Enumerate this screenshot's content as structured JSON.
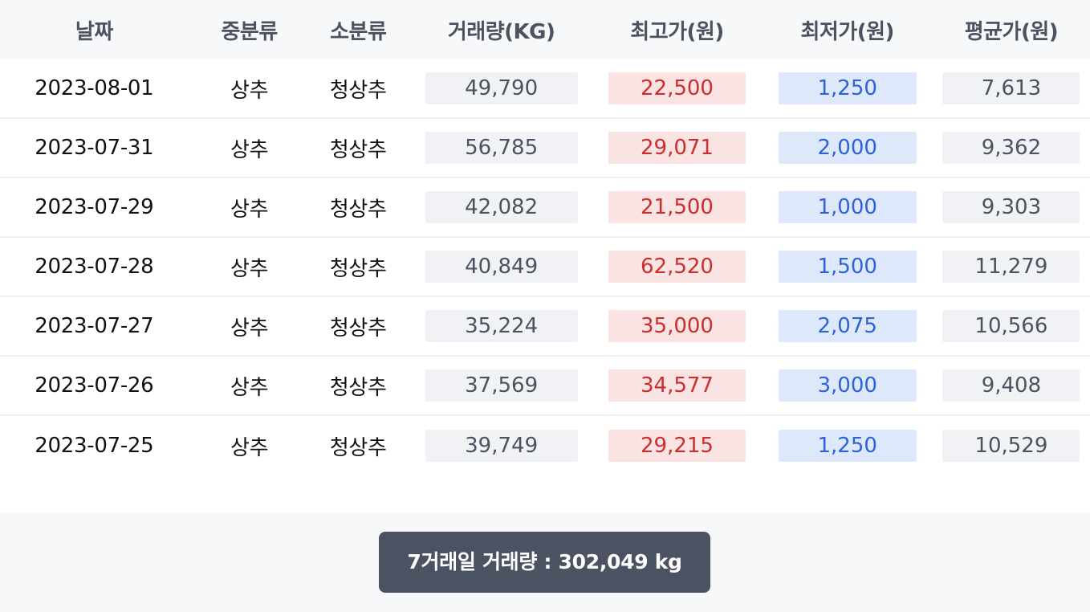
{
  "table": {
    "headers": {
      "date": "날짜",
      "mid_category": "중분류",
      "small_category": "소분류",
      "volume": "거래량(KG)",
      "max_price": "최고가(원)",
      "min_price": "최저가(원)",
      "avg_price": "평균가(원)"
    },
    "rows": [
      {
        "date": "2023-08-01",
        "mid": "상추",
        "small": "청상추",
        "volume": "49,790",
        "max": "22,500",
        "min": "1,250",
        "avg": "7,613"
      },
      {
        "date": "2023-07-31",
        "mid": "상추",
        "small": "청상추",
        "volume": "56,785",
        "max": "29,071",
        "min": "2,000",
        "avg": "9,362"
      },
      {
        "date": "2023-07-29",
        "mid": "상추",
        "small": "청상추",
        "volume": "42,082",
        "max": "21,500",
        "min": "1,000",
        "avg": "9,303"
      },
      {
        "date": "2023-07-28",
        "mid": "상추",
        "small": "청상추",
        "volume": "40,849",
        "max": "62,520",
        "min": "1,500",
        "avg": "11,279"
      },
      {
        "date": "2023-07-27",
        "mid": "상추",
        "small": "청상추",
        "volume": "35,224",
        "max": "35,000",
        "min": "2,075",
        "avg": "10,566"
      },
      {
        "date": "2023-07-26",
        "mid": "상추",
        "small": "청상추",
        "volume": "37,569",
        "max": "34,577",
        "min": "3,000",
        "avg": "9,408"
      },
      {
        "date": "2023-07-25",
        "mid": "상추",
        "small": "청상추",
        "volume": "39,749",
        "max": "29,215",
        "min": "1,250",
        "avg": "10,529"
      }
    ]
  },
  "summary": {
    "text": "7거래일 거래량 : 302,049 kg"
  },
  "colors": {
    "max_price_text": "#cc2e2e",
    "max_price_bg": "#f9e3e3",
    "min_price_text": "#2f62d8",
    "min_price_bg": "#dde8fa",
    "neutral_bg": "#f1f2f5",
    "summary_bg": "#4b5261"
  }
}
